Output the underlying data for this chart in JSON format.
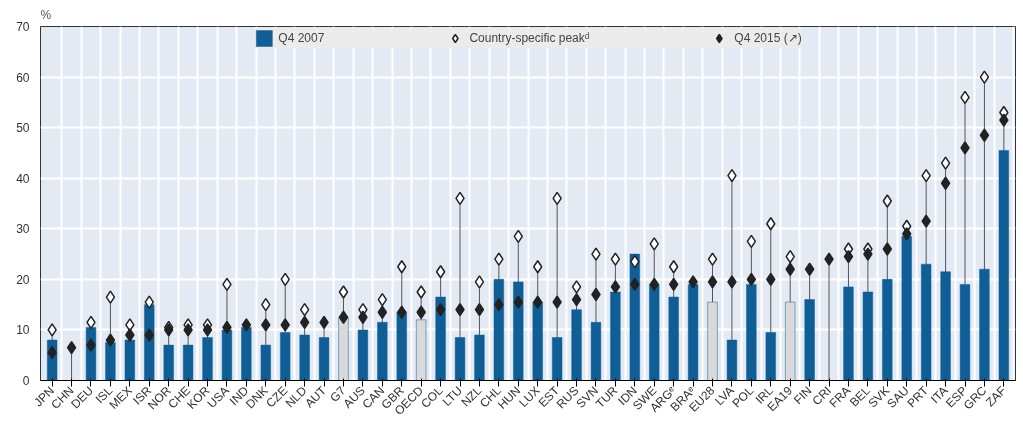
{
  "chart_data": {
    "type": "bar",
    "ylabel": "%",
    "categories": [
      "JPN",
      "CHN",
      "DEU",
      "ISL",
      "MEX",
      "ISR",
      "NOR",
      "CHE",
      "KOR",
      "USA",
      "IND",
      "DNK",
      "CZE",
      "NLD",
      "AUT",
      "G7",
      "AUS",
      "CAN",
      "GBR",
      "OECD",
      "COL",
      "LTU",
      "NZL",
      "CHL",
      "HUN",
      "LUX",
      "EST",
      "RUS",
      "SVN",
      "TUR",
      "IDN",
      "SWE",
      "ARGᵉ",
      "BRAᵉ",
      "EU28",
      "LVA",
      "POL",
      "IRL",
      "EA19",
      "FIN",
      "CRI",
      "FRA",
      "BEL",
      "SVK",
      "SAU",
      "PRT",
      "ITA",
      "ESP",
      "GRC",
      "ZAF"
    ],
    "series": [
      {
        "name": "Q4 2007",
        "color": "#0f5f96",
        "colors": [
          "#0f5f96",
          "#0f5f96",
          "#0f5f96",
          "#0f5f96",
          "#0f5f96",
          "#0f5f96",
          "#0f5f96",
          "#0f5f96",
          "#0f5f96",
          "#0f5f96",
          "#0f5f96",
          "#0f5f96",
          "#0f5f96",
          "#0f5f96",
          "#0f5f96",
          "#d9d9d9",
          "#0f5f96",
          "#0f5f96",
          "#0f5f96",
          "#d9d9d9",
          "#0f5f96",
          "#0f5f96",
          "#0f5f96",
          "#0f5f96",
          "#0f5f96",
          "#0f5f96",
          "#0f5f96",
          "#0f5f96",
          "#0f5f96",
          "#0f5f96",
          "#0f5f96",
          "#0f5f96",
          "#0f5f96",
          "#0f5f96",
          "#d9d9d9",
          "#0f5f96",
          "#0f5f96",
          "#0f5f96",
          "#d9d9d9",
          "#0f5f96",
          "#0f5f96",
          "#0f5f96",
          "#0f5f96",
          "#0f5f96",
          "#0f5f96",
          "#0f5f96",
          "#0f5f96",
          "#0f5f96",
          "#0f5f96",
          "#0f5f96"
        ],
        "values": [
          8,
          null,
          10.5,
          7.5,
          8,
          15,
          7,
          7,
          8.5,
          10,
          10.5,
          7,
          9.5,
          9,
          8.5,
          12.5,
          10,
          11.5,
          13.5,
          12,
          16.5,
          8.5,
          9,
          20,
          19.5,
          15.5,
          8.5,
          14,
          11.5,
          17.5,
          25,
          19,
          16.5,
          19,
          15.5,
          8,
          19,
          9.5,
          15.5,
          16,
          null,
          18.5,
          17.5,
          20,
          28.5,
          23,
          21.5,
          19,
          22,
          45.5
        ]
      },
      {
        "name": "Country-specific peakᵈ",
        "type": "scatter",
        "marker": "diamond",
        "color": "#ffffff",
        "values": [
          10,
          null,
          11.5,
          16.5,
          11,
          15.5,
          10.5,
          11,
          11,
          19,
          null,
          15,
          20,
          14,
          null,
          17.5,
          14,
          16,
          22.5,
          17.5,
          21.5,
          36,
          19.5,
          24,
          28.5,
          22.5,
          36,
          18.5,
          25,
          24,
          23.5,
          27,
          22.5,
          null,
          24,
          40.5,
          27.5,
          31,
          24.5,
          null,
          null,
          26,
          26,
          35.5,
          30.5,
          40.5,
          43,
          56,
          60,
          53
        ]
      },
      {
        "name": "Q4 2015 (↗)",
        "type": "scatter",
        "marker": "diamond",
        "color": "#222222",
        "values": [
          5.5,
          6.5,
          7,
          8,
          9,
          9,
          10,
          10,
          10,
          10.5,
          11,
          11,
          11,
          11.5,
          11.5,
          12.5,
          12.5,
          13.5,
          13.5,
          13.5,
          14,
          14,
          14,
          15,
          15.5,
          15.5,
          15.5,
          16,
          17,
          18.5,
          19,
          19,
          19,
          19.5,
          19.5,
          19.5,
          20,
          20,
          22,
          22,
          24,
          24.5,
          25,
          26,
          29,
          31.5,
          39,
          46,
          48.5,
          51.5
        ]
      }
    ],
    "ylim": [
      0,
      70
    ],
    "yticks": [
      0,
      10,
      20,
      30,
      40,
      50,
      60,
      70
    ],
    "grid": true,
    "legend": "top"
  }
}
